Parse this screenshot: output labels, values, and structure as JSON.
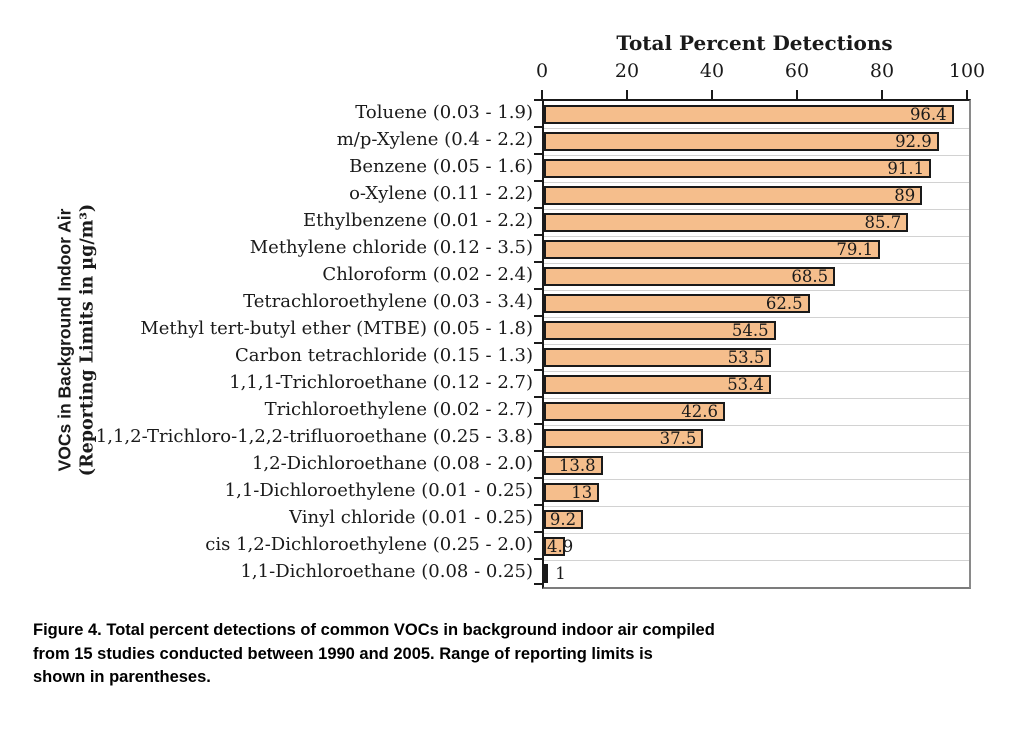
{
  "chart_data": {
    "type": "bar",
    "orientation": "horizontal",
    "title": "Total Percent Detections",
    "xlabel": "Total Percent Detections",
    "ylabel_line1": "VOCs in Background Indoor Air",
    "ylabel_line2": "(Reporting Limits in µg/m³)",
    "xlim": [
      0,
      100
    ],
    "xticks": [
      0,
      20,
      40,
      60,
      80,
      100
    ],
    "xtick_labels": [
      "0",
      "20",
      "40",
      "60",
      "80",
      "100"
    ],
    "grid": "horizontal category separator lines only",
    "legend": "none",
    "bar_color": "#f5be8c",
    "bar_border_color": "#1a1a1a",
    "categories": [
      "Toluene (0.03 - 1.9)",
      "m/p-Xylene (0.4 - 2.2)",
      "Benzene (0.05 - 1.6)",
      "o-Xylene (0.11 - 2.2)",
      "Ethylbenzene (0.01 - 2.2)",
      "Methylene chloride (0.12 - 3.5)",
      "Chloroform (0.02 - 2.4)",
      "Tetrachloroethylene (0.03 - 3.4)",
      "Methyl tert-butyl ether (MTBE) (0.05 - 1.8)",
      "Carbon tetrachloride (0.15 - 1.3)",
      "1,1,1-Trichloroethane (0.12 - 2.7)",
      "Trichloroethylene (0.02 - 2.7)",
      "1,1,2-Trichloro-1,2,2-trifluoroethane (0.25 - 3.8)",
      "1,2-Dichloroethane (0.08 - 2.0)",
      "1,1-Dichloroethylene (0.01 - 0.25)",
      "Vinyl chloride (0.01 - 0.25)",
      "cis 1,2-Dichloroethylene (0.25 - 2.0)",
      "1,1-Dichloroethane (0.08 - 0.25)"
    ],
    "values": [
      96.4,
      92.9,
      91.1,
      89,
      85.7,
      79.1,
      68.5,
      62.5,
      54.5,
      53.5,
      53.4,
      42.6,
      37.5,
      13.8,
      13,
      9.2,
      4.9,
      1
    ],
    "value_labels": [
      "96.4",
      "92.9",
      "91.1",
      "89",
      "85.7",
      "79.1",
      "68.5",
      "62.5",
      "54.5",
      "53.5",
      "53.4",
      "42.6",
      "37.5",
      "13.8",
      "13",
      "9.2",
      "4.9",
      "1"
    ]
  },
  "caption": {
    "lines": [
      "Figure 4. Total percent detections of common VOCs in background indoor air compiled",
      "from 15 studies conducted between 1990 and 2005. Range of reporting limits is",
      "shown in parentheses."
    ]
  }
}
